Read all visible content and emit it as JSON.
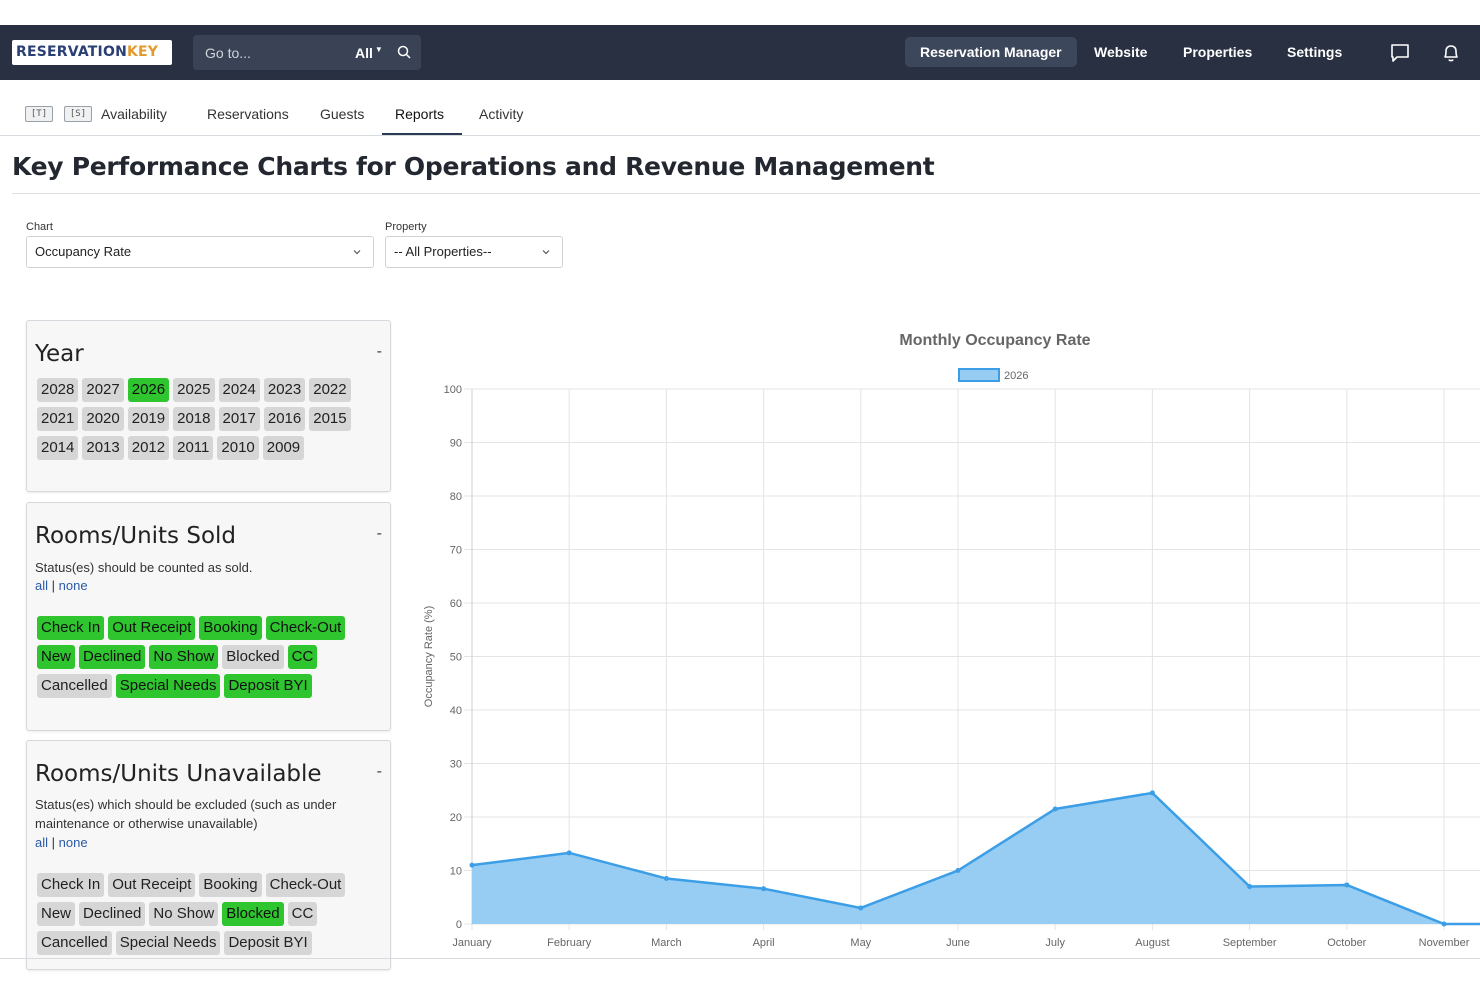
{
  "topbar": {
    "logo_a": "RESERVATION",
    "logo_b": "KEY",
    "search_placeholder": "Go to...",
    "search_scope": "All",
    "nav": [
      "Reservation Manager",
      "Website",
      "Properties",
      "Settings"
    ],
    "icons": [
      "chat-icon",
      "bell-icon"
    ]
  },
  "subnav": {
    "tags": [
      "[T]",
      "[S]"
    ],
    "tabs": [
      "Availability",
      "Reservations",
      "Guests",
      "Reports",
      "Activity"
    ],
    "active_tab": "Reports"
  },
  "page": {
    "title": "Key Performance Charts for Operations and Revenue Management"
  },
  "filters": {
    "chart_label": "Chart",
    "chart_value": "Occupancy Rate",
    "property_label": "Property",
    "property_value": "-- All Properties--"
  },
  "year_panel": {
    "title": "Year",
    "collapse": "-",
    "years": [
      {
        "label": "2028",
        "on": false
      },
      {
        "label": "2027",
        "on": false
      },
      {
        "label": "2026",
        "on": true
      },
      {
        "label": "2025",
        "on": false
      },
      {
        "label": "2024",
        "on": false
      },
      {
        "label": "2023",
        "on": false
      },
      {
        "label": "2022",
        "on": false
      },
      {
        "label": "2021",
        "on": false
      },
      {
        "label": "2020",
        "on": false
      },
      {
        "label": "2019",
        "on": false
      },
      {
        "label": "2018",
        "on": false
      },
      {
        "label": "2017",
        "on": false
      },
      {
        "label": "2016",
        "on": false
      },
      {
        "label": "2015",
        "on": false
      },
      {
        "label": "2014",
        "on": false
      },
      {
        "label": "2013",
        "on": false
      },
      {
        "label": "2012",
        "on": false
      },
      {
        "label": "2011",
        "on": false
      },
      {
        "label": "2010",
        "on": false
      },
      {
        "label": "2009",
        "on": false
      }
    ]
  },
  "sold_panel": {
    "title": "Rooms/Units Sold",
    "collapse": "-",
    "description": "Status(es) should be counted as sold.",
    "link_all": "all",
    "link_none": "none",
    "statuses": [
      {
        "label": "Check In",
        "on": true
      },
      {
        "label": "Out Receipt",
        "on": true
      },
      {
        "label": "Booking",
        "on": true
      },
      {
        "label": "Check-Out",
        "on": true
      },
      {
        "label": "New",
        "on": true
      },
      {
        "label": "Declined",
        "on": true
      },
      {
        "label": "No Show",
        "on": true
      },
      {
        "label": "Blocked",
        "on": false
      },
      {
        "label": "CC",
        "on": true
      },
      {
        "label": "Cancelled",
        "on": false
      },
      {
        "label": "Special Needs",
        "on": true
      },
      {
        "label": "Deposit BYI",
        "on": true
      }
    ]
  },
  "unavail_panel": {
    "title": "Rooms/Units Unavailable",
    "collapse": "-",
    "description": "Status(es) which should be excluded (such as under maintenance or otherwise unavailable)",
    "link_all": "all",
    "link_none": "none",
    "statuses": [
      {
        "label": "Check In",
        "on": false
      },
      {
        "label": "Out Receipt",
        "on": false
      },
      {
        "label": "Booking",
        "on": false
      },
      {
        "label": "Check-Out",
        "on": false
      },
      {
        "label": "New",
        "on": false
      },
      {
        "label": "Declined",
        "on": false
      },
      {
        "label": "No Show",
        "on": false
      },
      {
        "label": "Blocked",
        "on": true
      },
      {
        "label": "CC",
        "on": false
      },
      {
        "label": "Cancelled",
        "on": false
      },
      {
        "label": "Special Needs",
        "on": false
      },
      {
        "label": "Deposit BYI",
        "on": false
      }
    ]
  },
  "colors": {
    "topbar": "#283042",
    "chip_on": "#2ec52e",
    "chip_off": "#d6d6d6",
    "series_line": "#3b9ee6",
    "series_fill": "#98cdf3"
  },
  "chart_data": {
    "type": "area",
    "title": "Monthly Occupancy Rate",
    "ylabel": "Occupancy Rate (%)",
    "xlabel": "",
    "categories": [
      "January",
      "February",
      "March",
      "April",
      "May",
      "June",
      "July",
      "August",
      "September",
      "October",
      "November"
    ],
    "series": [
      {
        "name": "2026",
        "values": [
          11,
          13.3,
          8.5,
          6.6,
          3,
          10,
          21.5,
          24.5,
          7,
          7.3,
          0
        ]
      }
    ],
    "ylim": [
      0,
      100
    ],
    "yticks": [
      0,
      10,
      20,
      30,
      40,
      50,
      60,
      70,
      80,
      90,
      100
    ],
    "grid": true,
    "legend": "top-center"
  }
}
